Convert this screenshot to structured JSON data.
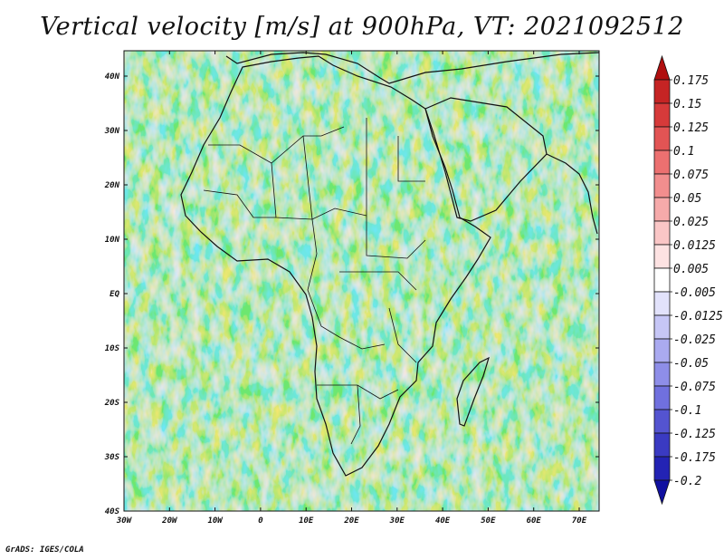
{
  "title": "Vertical velocity [m/s] at 900hPa, VT: 2021092512",
  "credit": "GrADS: IGES/COLA",
  "map": {
    "lon_labels": [
      "30W",
      "20W",
      "10W",
      "0",
      "10E",
      "20E",
      "30E",
      "40E",
      "50E",
      "60E",
      "70E"
    ],
    "lat_labels": [
      "40N",
      "30N",
      "20N",
      "10N",
      "EQ",
      "10S",
      "20S",
      "30S",
      "40S"
    ],
    "lon_range": [
      -30,
      75
    ],
    "lat_range": [
      -40,
      44
    ],
    "field": "vertical velocity",
    "level": "900hPa"
  },
  "colorbar": {
    "levels": [
      "0.175",
      "0.15",
      "0.125",
      "0.1",
      "0.075",
      "0.05",
      "0.025",
      "0.0125",
      "0.005",
      "-0.005",
      "-0.0125",
      "-0.025",
      "-0.05",
      "-0.075",
      "-0.1",
      "-0.125",
      "-0.175",
      "-0.2"
    ],
    "colors": [
      "#b00f0f",
      "#c52424",
      "#d63a3a",
      "#e25454",
      "#ec7070",
      "#f28e8e",
      "#f6aaaa",
      "#fac6c6",
      "#fde2e2",
      "#ffffff",
      "#e2e2fb",
      "#c6c6f6",
      "#aaaaf0",
      "#8e8ee8",
      "#7070de",
      "#5454d0",
      "#3a3ac2",
      "#2323b4",
      "#1010a0"
    ]
  }
}
